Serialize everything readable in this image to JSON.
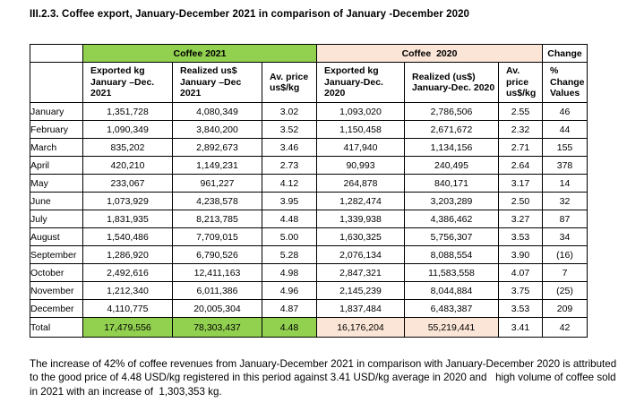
{
  "page": {
    "title": "III.2.3. Coffee export, January-December 2021 in comparison of January -December 2020",
    "footer_note": "The increase of 42% of coffee revenues from January-December 2021 in comparison with January-December 2020 is attributed to the good price of 4.48 USD/kg registered in this period against 3.41 USD/kg average in 2020 and   high volume of coffee sold in 2021 with an increase of  1,303,353 kg."
  },
  "colors": {
    "coffee_2021_header": "#92D050",
    "coffee_2020_header": "#FBE5D6",
    "border": "#000000",
    "text": "#000000"
  },
  "table": {
    "group_headers": [
      {
        "label": "Coffee 2021",
        "colspan": 3,
        "bg": "green"
      },
      {
        "label": "Coffee  2020",
        "colspan": 3,
        "bg": "peach"
      },
      {
        "label": "Change",
        "colspan": 1,
        "bg": "white"
      }
    ],
    "column_headers": [
      "Exported kg\nJanuary –Dec. 2021",
      "Realized us$\nJanuary –Dec 2021",
      "Av. price\nus$/kg",
      "Exported  kg\nJanuary-Dec. 2020",
      "Realized (us$)\nJanuary-Dec. 2020",
      "Av.\nprice\nus$/kg",
      "%\nChange\nValues"
    ],
    "rows": [
      {
        "month": "January",
        "exported_2021": "1,351,728",
        "realized_2021": "4,080,349",
        "price_2021": "3.02",
        "exported_2020": "1,093,020",
        "realized_2020": "2,786,506",
        "price_2020": "2.55",
        "change": "46"
      },
      {
        "month": "February",
        "exported_2021": "1,090,349",
        "realized_2021": "3,840,200",
        "price_2021": "3.52",
        "exported_2020": "1,150,458",
        "realized_2020": "2,671,672",
        "price_2020": "2.32",
        "change": "44"
      },
      {
        "month": "March",
        "exported_2021": "835,202",
        "realized_2021": "2,892,673",
        "price_2021": "3.46",
        "exported_2020": "417,940",
        "realized_2020": "1,134,156",
        "price_2020": "2.71",
        "change": "155"
      },
      {
        "month": "April",
        "exported_2021": "420,210",
        "realized_2021": "1,149,231",
        "price_2021": "2.73",
        "exported_2020": "90,993",
        "realized_2020": "240,495",
        "price_2020": "2.64",
        "change": "378"
      },
      {
        "month": "May",
        "exported_2021": "233,067",
        "realized_2021": "961,227",
        "price_2021": "4.12",
        "exported_2020": "264,878",
        "realized_2020": "840,171",
        "price_2020": "3.17",
        "change": "14"
      },
      {
        "month": "June",
        "exported_2021": "1,073,929",
        "realized_2021": "4,238,578",
        "price_2021": "3.95",
        "exported_2020": "1,282,474",
        "realized_2020": "3,203,289",
        "price_2020": "2.50",
        "change": "32"
      },
      {
        "month": "July",
        "exported_2021": "1,831,935",
        "realized_2021": "8,213,785",
        "price_2021": "4.48",
        "exported_2020": "1,339,938",
        "realized_2020": "4,386,462",
        "price_2020": "3.27",
        "change": "87"
      },
      {
        "month": "August",
        "exported_2021": "1,540,486",
        "realized_2021": "7,709,015",
        "price_2021": "5.00",
        "exported_2020": "1,630,325",
        "realized_2020": "5,756,307",
        "price_2020": "3.53",
        "change": "34"
      },
      {
        "month": "September",
        "exported_2021": "1,286,920",
        "realized_2021": "6,790,526",
        "price_2021": "5.28",
        "exported_2020": "2,076,134",
        "realized_2020": "8,088,554",
        "price_2020": "3.90",
        "change": "(16)"
      },
      {
        "month": "October",
        "exported_2021": "2,492,616",
        "realized_2021": "12,411,163",
        "price_2021": "4.98",
        "exported_2020": "2,847,321",
        "realized_2020": "11,583,558",
        "price_2020": "4.07",
        "change": "7"
      },
      {
        "month": "November",
        "exported_2021": "1,212,340",
        "realized_2021": "6,011,386",
        "price_2021": "4.96",
        "exported_2020": "2,145,239",
        "realized_2020": "8,044,884",
        "price_2020": "3.75",
        "change": "(25)"
      },
      {
        "month": "December",
        "exported_2021": "4,110,775",
        "realized_2021": "20,005,304",
        "price_2021": "4.87",
        "exported_2020": "1,837,484",
        "realized_2020": "6,483,387",
        "price_2020": "3.53",
        "change": "209"
      }
    ],
    "total_row": {
      "month": "Total",
      "exported_2021": "17,479,556",
      "realized_2021": "78,303,437",
      "price_2021": "4.48",
      "exported_2020": "16,176,204",
      "realized_2020": "55,219,441",
      "price_2020": "3.41",
      "change": "42"
    }
  }
}
